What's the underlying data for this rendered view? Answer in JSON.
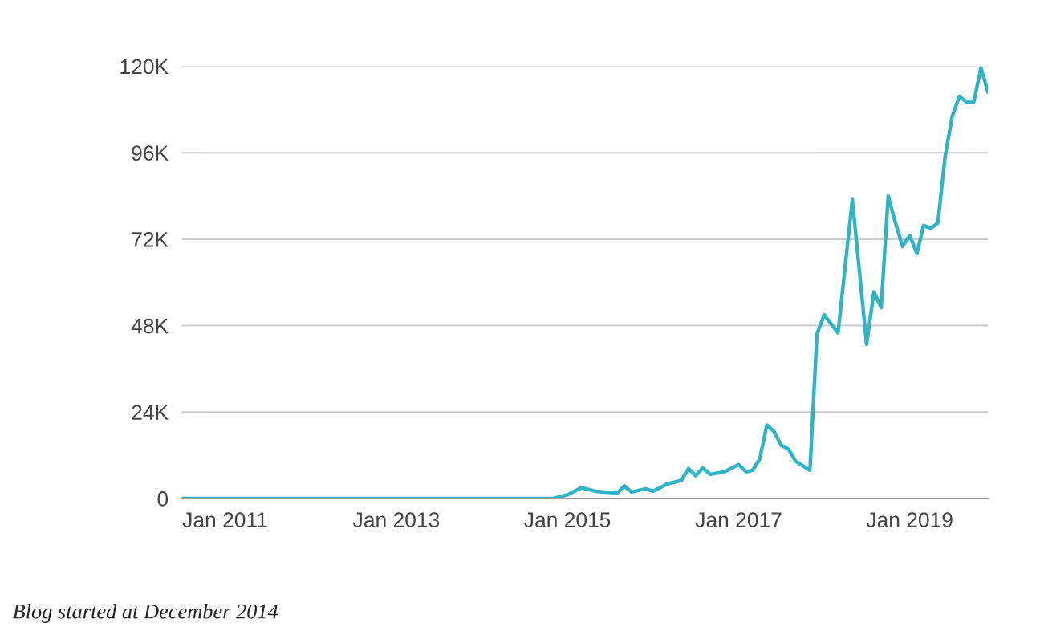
{
  "chart_data": {
    "type": "line",
    "x": [
      "2010-07",
      "2014-11",
      "2015-01",
      "2015-03",
      "2015-05",
      "2015-08",
      "2015-09",
      "2015-10",
      "2015-12",
      "2016-01",
      "2016-03",
      "2016-05",
      "2016-06",
      "2016-07",
      "2016-08",
      "2016-09",
      "2016-11",
      "2017-01",
      "2017-02",
      "2017-03",
      "2017-04",
      "2017-05",
      "2017-06",
      "2017-07",
      "2017-08",
      "2017-09",
      "2017-11",
      "2017-12",
      "2018-01",
      "2018-03",
      "2018-05",
      "2018-07",
      "2018-08",
      "2018-09",
      "2018-10",
      "2018-11",
      "2018-12",
      "2019-01",
      "2019-02",
      "2019-03",
      "2019-04",
      "2019-05",
      "2019-06",
      "2019-07",
      "2019-08",
      "2019-09",
      "2019-10",
      "2019-11",
      "2019-12"
    ],
    "series": [
      {
        "color": "#2fb4c7",
        "values": [
          0,
          0,
          1000,
          3000,
          2000,
          1500,
          3500,
          1800,
          2700,
          2000,
          4000,
          5000,
          8300,
          6300,
          8500,
          6700,
          7400,
          9400,
          7400,
          7800,
          11000,
          20400,
          18600,
          14800,
          13700,
          10300,
          7800,
          45700,
          51000,
          46000,
          83000,
          42800,
          57400,
          53000,
          84000,
          76500,
          70000,
          73000,
          68000,
          75800,
          75000,
          76500,
          95000,
          106000,
          111700,
          110000,
          110000,
          119500,
          112800
        ]
      }
    ],
    "xlim": [
      "2010-07",
      "2019-12"
    ],
    "xticks": [
      {
        "value": "2011-01",
        "label": "Jan 2011"
      },
      {
        "value": "2013-01",
        "label": "Jan 2013"
      },
      {
        "value": "2015-01",
        "label": "Jan 2015"
      },
      {
        "value": "2017-01",
        "label": "Jan 2017"
      },
      {
        "value": "2019-01",
        "label": "Jan 2019"
      }
    ],
    "ylim": [
      0,
      120000
    ],
    "yticks": [
      {
        "value": 0,
        "label": "0"
      },
      {
        "value": 24000,
        "label": "24K"
      },
      {
        "value": 48000,
        "label": "48K"
      },
      {
        "value": 72000,
        "label": "72K"
      },
      {
        "value": 96000,
        "label": "96K"
      },
      {
        "value": 120000,
        "label": "120K"
      }
    ],
    "grid": "y",
    "marker": "none",
    "line_style": "solid",
    "annotations": [
      "Blog started at December 2014"
    ]
  }
}
